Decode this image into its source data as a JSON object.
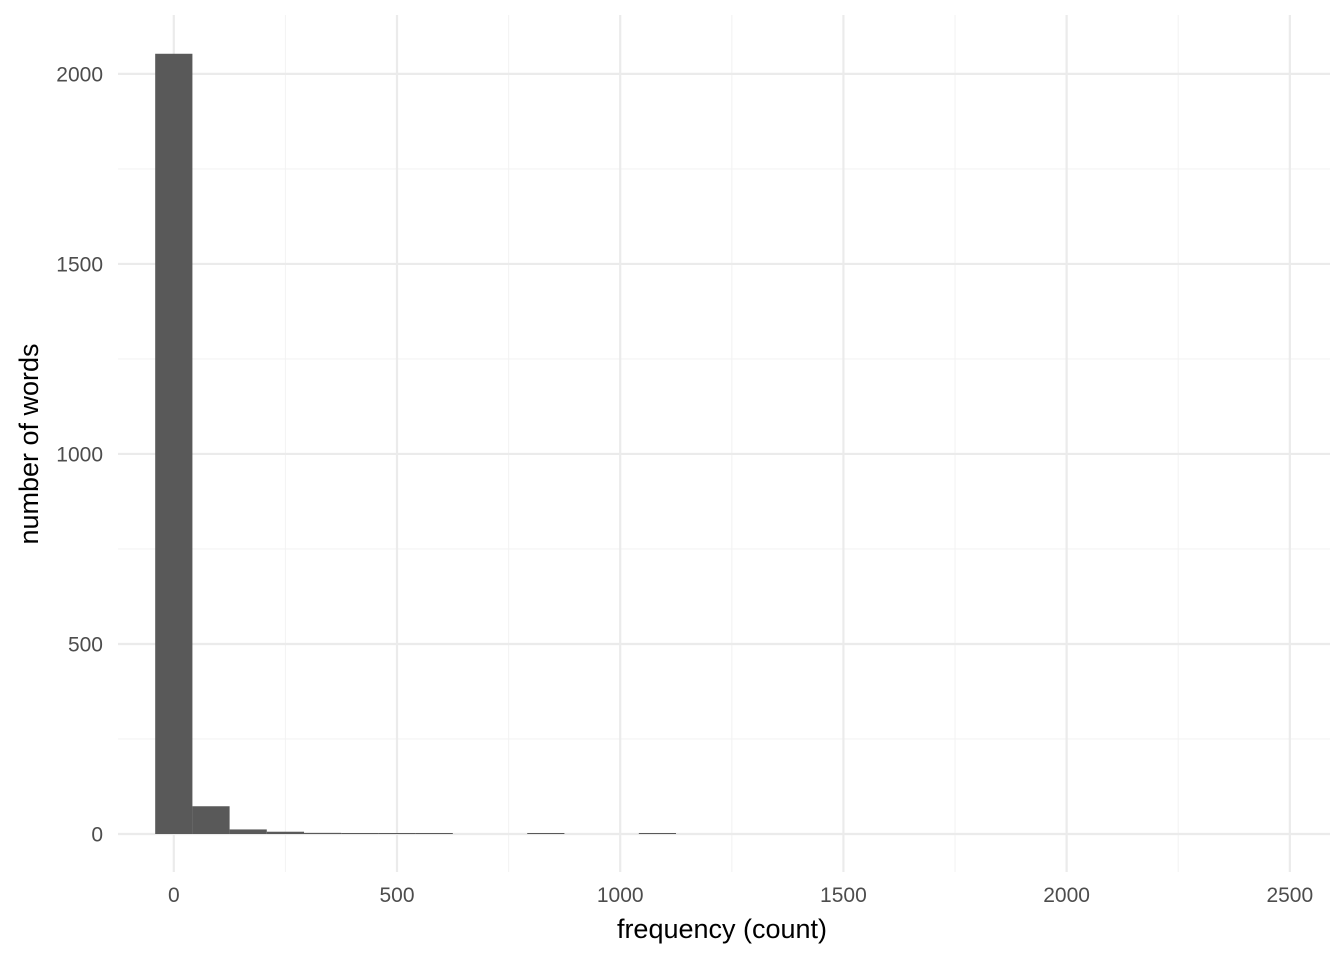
{
  "chart_data": {
    "type": "bar",
    "subtype": "histogram",
    "title": "",
    "xlabel": "frequency (count)",
    "ylabel": "number of words",
    "xlim": [
      -125,
      2590
    ],
    "ylim": [
      -100,
      2155
    ],
    "x_ticks": [
      0,
      500,
      1000,
      1500,
      2000,
      2500
    ],
    "x_tick_labels": [
      "0",
      "500",
      "1000",
      "1500",
      "2000",
      "2500"
    ],
    "y_ticks": [
      0,
      500,
      1000,
      1500,
      2000
    ],
    "y_tick_labels": [
      "0",
      "500",
      "1000",
      "1500",
      "2000"
    ],
    "x_minor_ticks": [
      250,
      750,
      1250,
      1750,
      2250
    ],
    "y_minor_ticks": [
      250,
      750,
      1250,
      1750
    ],
    "bin_width": 83.3,
    "bins": [
      {
        "start": -41.7,
        "end": 41.7,
        "count": 2053
      },
      {
        "start": 41.7,
        "end": 125.0,
        "count": 73
      },
      {
        "start": 125.0,
        "end": 208.3,
        "count": 12
      },
      {
        "start": 208.3,
        "end": 291.7,
        "count": 6
      },
      {
        "start": 291.7,
        "end": 375.0,
        "count": 3
      },
      {
        "start": 375.0,
        "end": 458.3,
        "count": 1
      },
      {
        "start": 458.3,
        "end": 541.7,
        "count": 1
      },
      {
        "start": 541.7,
        "end": 625.0,
        "count": 1
      },
      {
        "start": 791.7,
        "end": 875.0,
        "count": 1
      },
      {
        "start": 1041.7,
        "end": 1125.0,
        "count": 1
      }
    ],
    "grid": true,
    "legend": "none",
    "colors": {
      "bar": "#595959",
      "grid_major": "#ebebeb",
      "grid_minor": "#f3f3f3",
      "tick_label": "#4d4d4d",
      "axis_title": "#000000"
    }
  }
}
